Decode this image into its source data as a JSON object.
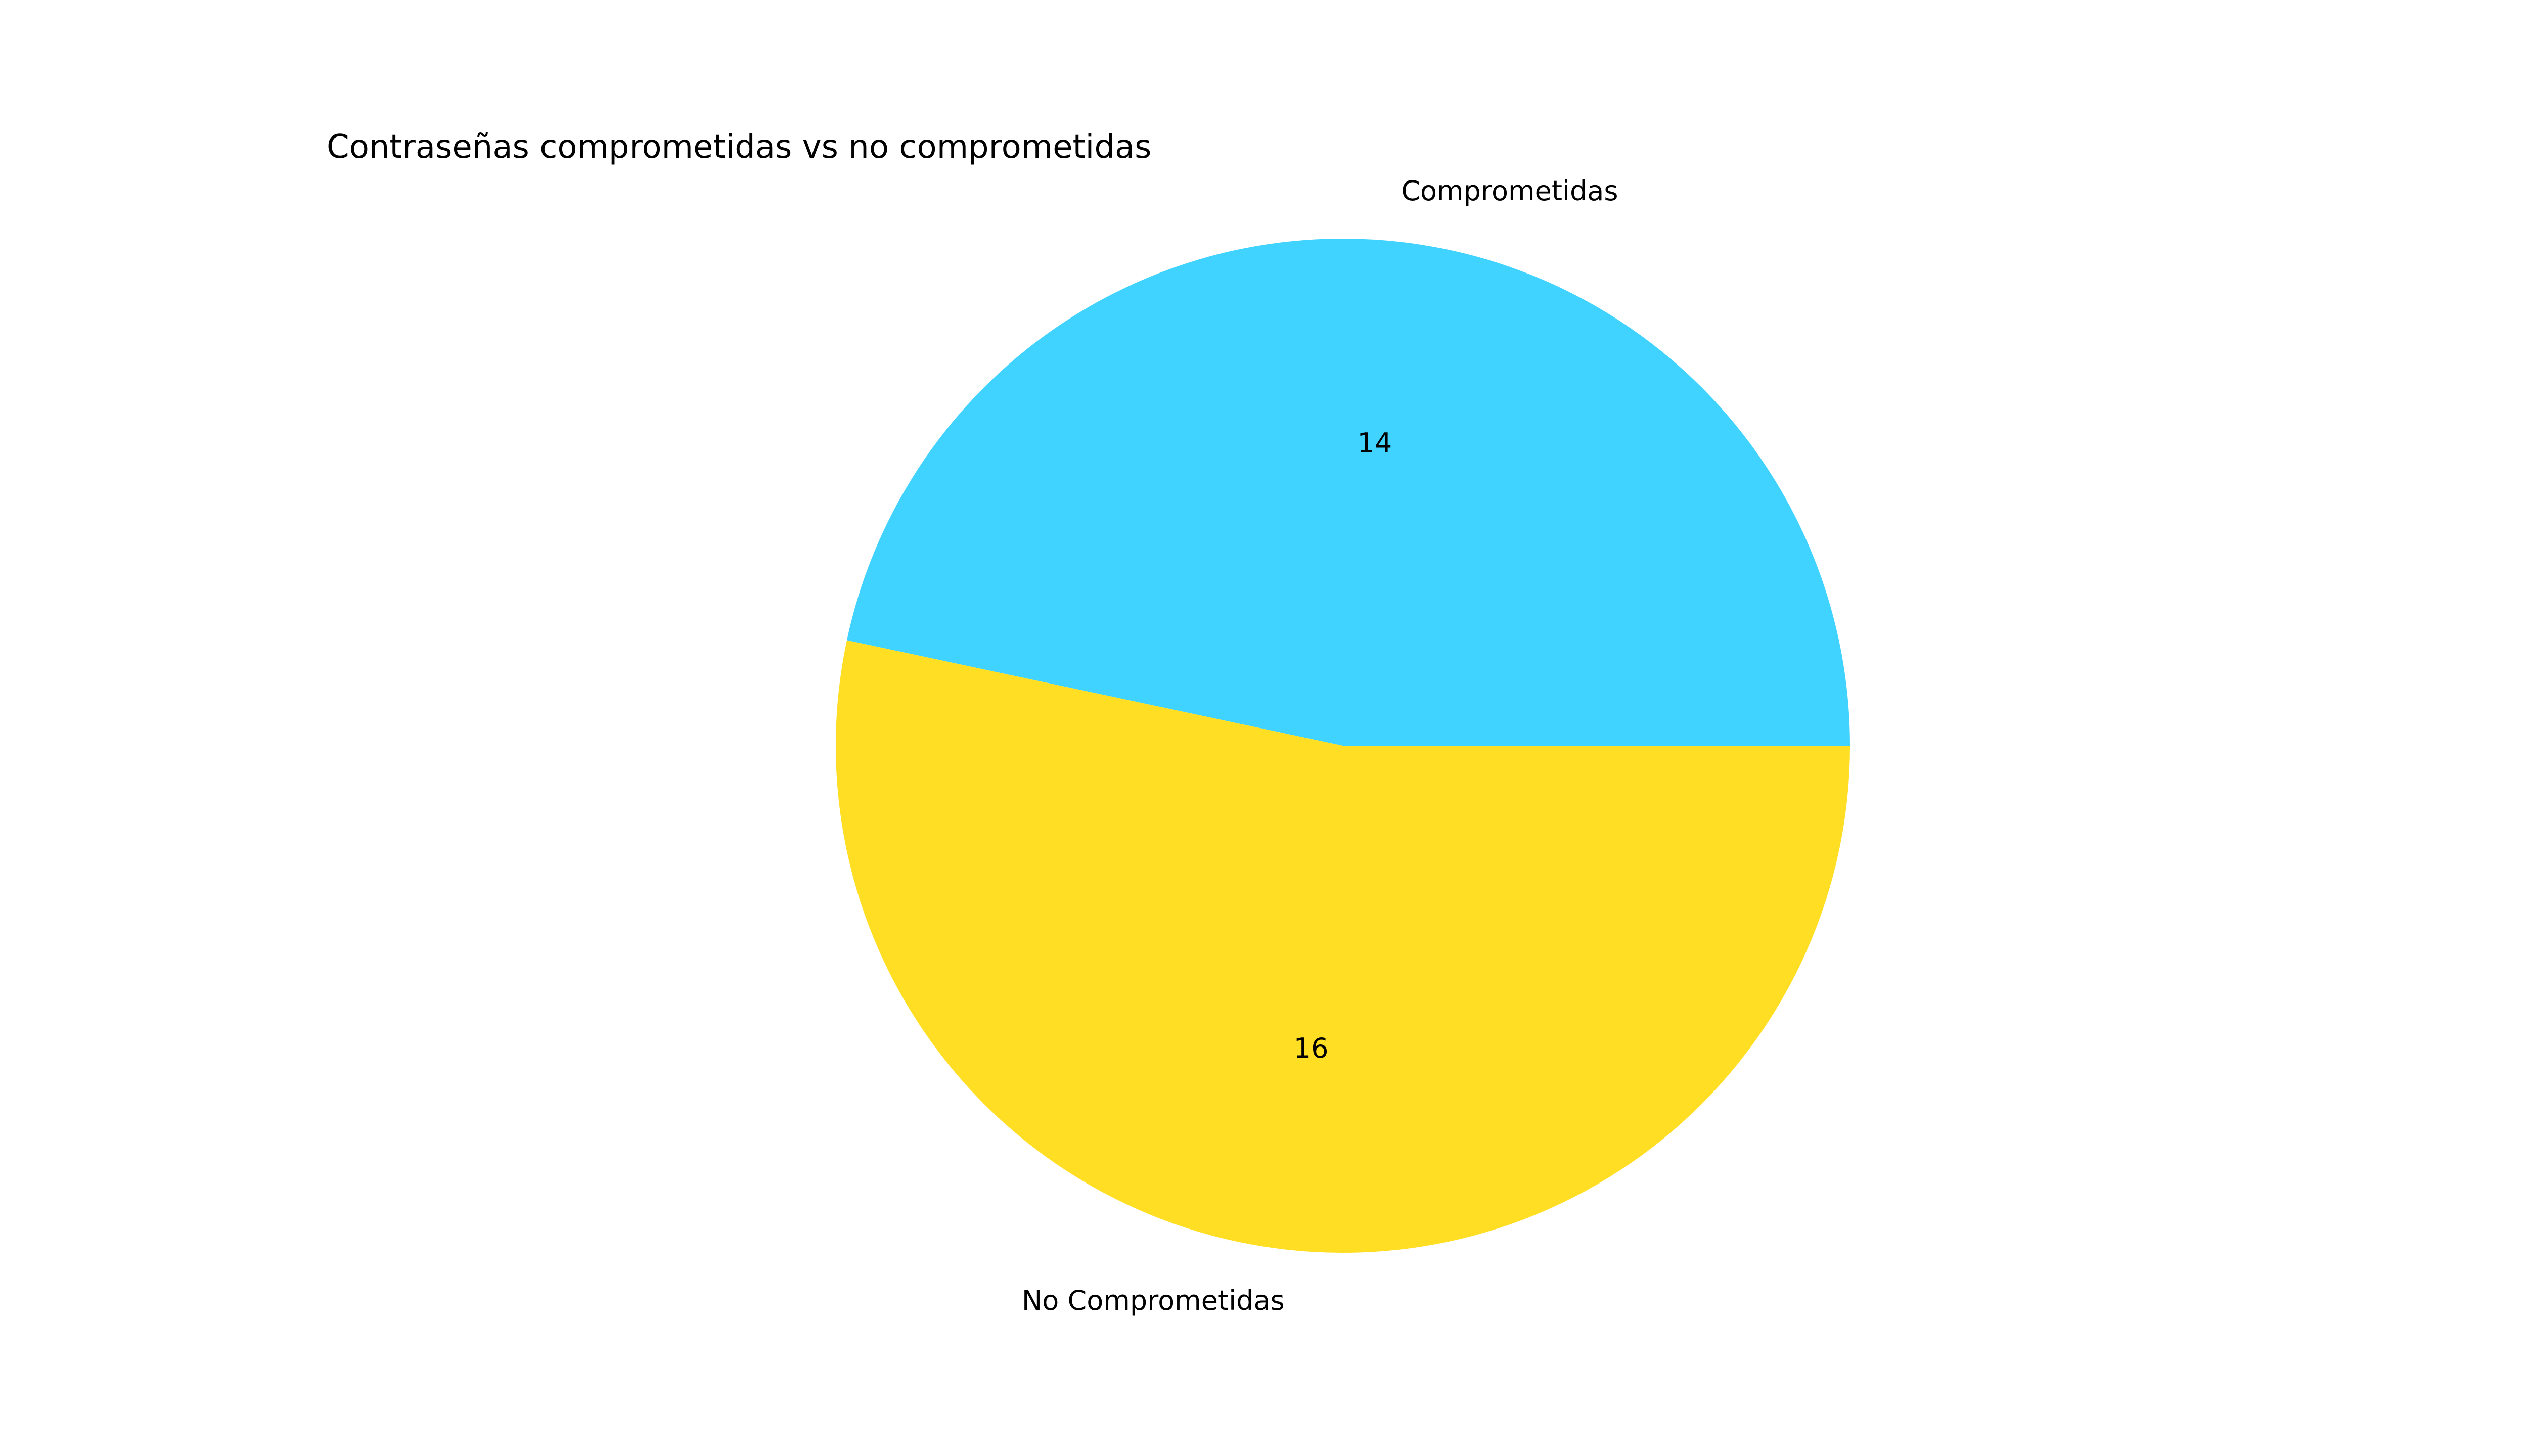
{
  "chart_data": {
    "type": "pie",
    "title": "Contraseñas comprometidas vs no comprometidas",
    "slices": [
      {
        "label": "Comprometidas",
        "value": 14,
        "color": "#41d3ff"
      },
      {
        "label": "No Comprometidas",
        "value": 16,
        "color": "#ffde24"
      }
    ],
    "start_angle_deg": 0,
    "direction": "counterclockwise",
    "legend": "none"
  }
}
